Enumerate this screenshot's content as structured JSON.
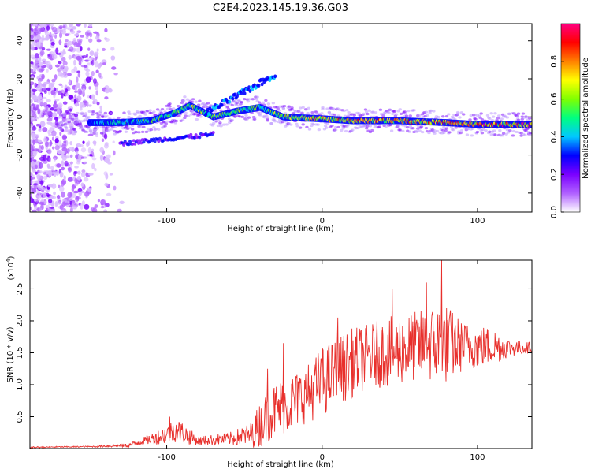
{
  "title": "C2E4.2023.145.19.36.G03",
  "colors": {
    "line": "#e8302c",
    "colormap": [
      "#ffffff",
      "#b060ff",
      "#7a00ff",
      "#0000ff",
      "#00c8ff",
      "#00ff80",
      "#80ff00",
      "#ffff00",
      "#ff8000",
      "#ff0000",
      "#ff0080"
    ]
  },
  "chart_data": [
    {
      "type": "heatmap",
      "name": "spectrogram",
      "xlabel": "Height of straight line (km)",
      "ylabel": "Frequency (Hz)",
      "xlim": [
        -188,
        135
      ],
      "ylim": [
        -50,
        49
      ],
      "xticks": [
        -100,
        0,
        100
      ],
      "yticks": [
        40,
        20,
        0,
        -20,
        -40
      ],
      "xtick_labels": [
        "-100",
        "0",
        "100"
      ],
      "ytick_labels": [
        "40",
        "20",
        "0",
        "-20",
        "-40"
      ],
      "colorbar": {
        "label": "Normalized spectral amplitude",
        "ticks": [
          0.0,
          0.2,
          0.4,
          0.6,
          0.8
        ],
        "tick_labels": [
          "0.0",
          "0.2",
          "0.4",
          "0.6",
          "0.8"
        ],
        "range": [
          0,
          1
        ]
      },
      "ridge_trace": [
        {
          "x": -150,
          "y": -3,
          "amp": 0.35
        },
        {
          "x": -130,
          "y": -3,
          "amp": 0.5
        },
        {
          "x": -110,
          "y": -2,
          "amp": 0.55
        },
        {
          "x": -95,
          "y": 2,
          "amp": 0.6
        },
        {
          "x": -85,
          "y": 6,
          "amp": 0.6
        },
        {
          "x": -70,
          "y": 0,
          "amp": 0.65
        },
        {
          "x": -55,
          "y": 3,
          "amp": 0.65
        },
        {
          "x": -40,
          "y": 5,
          "amp": 0.55
        },
        {
          "x": -25,
          "y": 0,
          "amp": 0.7
        },
        {
          "x": 0,
          "y": -1,
          "amp": 0.75
        },
        {
          "x": 20,
          "y": -2,
          "amp": 0.85
        },
        {
          "x": 50,
          "y": -2,
          "amp": 0.85
        },
        {
          "x": 80,
          "y": -3,
          "amp": 0.85
        },
        {
          "x": 100,
          "y": -4,
          "amp": 0.9
        },
        {
          "x": 135,
          "y": -4,
          "amp": 0.9
        }
      ]
    },
    {
      "type": "line",
      "name": "snr",
      "xlabel": "Height of straight line (km)",
      "ylabel": "SNR (10 * v/v)",
      "scale_label": "(x10",
      "scale_exponent": "4",
      "scale_suffix": ")",
      "xlim": [
        -188,
        135
      ],
      "ylim": [
        0,
        2.95
      ],
      "xticks": [
        -100,
        0,
        100
      ],
      "yticks": [
        0.5,
        1.0,
        1.5,
        2.0,
        2.5
      ],
      "xtick_labels": [
        "-100",
        "0",
        "100"
      ],
      "ytick_labels": [
        "0.5",
        "1.0",
        "1.5",
        "2.0",
        "2.5"
      ],
      "envelope": {
        "x": [
          -188,
          -150,
          -125,
          -115,
          -100,
          -95,
          -90,
          -80,
          -60,
          -45,
          -41,
          -35,
          -30,
          -20,
          -10,
          0,
          10,
          20,
          30,
          40,
          50,
          60,
          70,
          77,
          90,
          110,
          120,
          135
        ],
        "mean": [
          0.02,
          0.03,
          0.05,
          0.12,
          0.22,
          0.3,
          0.25,
          0.12,
          0.15,
          0.22,
          0.35,
          0.5,
          0.6,
          0.72,
          0.85,
          1.05,
          1.2,
          1.35,
          1.45,
          1.5,
          1.55,
          1.6,
          1.62,
          1.65,
          1.6,
          1.6,
          1.58,
          1.58
        ],
        "spread": [
          0.01,
          0.01,
          0.03,
          0.06,
          0.15,
          0.2,
          0.18,
          0.07,
          0.1,
          0.2,
          0.35,
          0.4,
          0.45,
          0.45,
          0.45,
          0.55,
          0.55,
          0.55,
          0.5,
          0.55,
          0.55,
          0.55,
          0.6,
          0.7,
          0.4,
          0.3,
          0.15,
          0.08
        ]
      },
      "peaks": [
        {
          "x": -98,
          "y": 0.5
        },
        {
          "x": -35,
          "y": 1.25
        },
        {
          "x": -25,
          "y": 1.65
        },
        {
          "x": 10,
          "y": 2.05
        },
        {
          "x": 45,
          "y": 2.5
        },
        {
          "x": 67,
          "y": 2.6
        },
        {
          "x": 77,
          "y": 2.95
        }
      ]
    }
  ]
}
